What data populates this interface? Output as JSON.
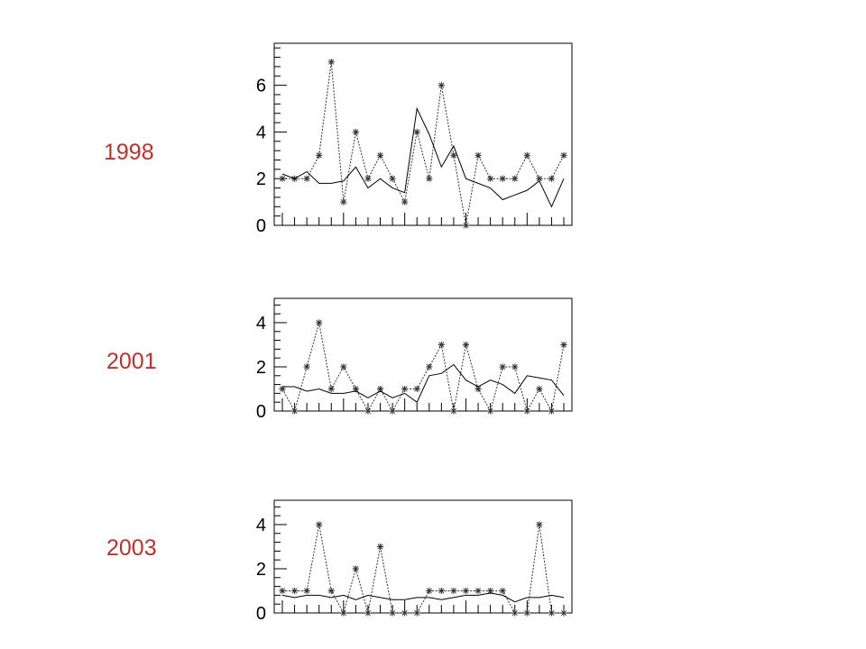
{
  "chart_data": [
    {
      "type": "line",
      "title": "1998",
      "xlabel": "",
      "ylabel": "",
      "ylim": [
        0,
        7.8
      ],
      "yticks": [
        0,
        2,
        4,
        6
      ],
      "x": [
        1,
        2,
        3,
        4,
        5,
        6,
        7,
        8,
        9,
        10,
        11,
        12,
        13,
        14,
        15,
        16,
        17,
        18,
        19,
        20,
        21,
        22,
        23,
        24
      ],
      "series": [
        {
          "values": [
            2,
            2,
            2,
            3,
            7,
            1,
            4,
            2,
            3,
            2,
            1,
            4,
            2,
            6,
            3,
            0,
            3,
            2,
            2,
            2,
            3,
            2,
            2,
            3
          ]
        },
        {
          "values": [
            2.2,
            2.0,
            2.3,
            1.8,
            1.8,
            1.9,
            2.5,
            1.6,
            2.0,
            1.6,
            1.4,
            5.0,
            3.9,
            2.5,
            3.4,
            2.0,
            1.8,
            1.6,
            1.1,
            1.3,
            1.5,
            1.9,
            0.8,
            2.0
          ]
        }
      ]
    },
    {
      "type": "line",
      "title": "2001",
      "xlabel": "",
      "ylabel": "",
      "ylim": [
        0,
        5.1
      ],
      "yticks": [
        0,
        2,
        4
      ],
      "x": [
        1,
        2,
        3,
        4,
        5,
        6,
        7,
        8,
        9,
        10,
        11,
        12,
        13,
        14,
        15,
        16,
        17,
        18,
        19,
        20,
        21,
        22,
        23,
        24
      ],
      "series": [
        {
          "values": [
            1,
            0,
            2,
            4,
            1,
            2,
            1,
            0,
            1,
            0,
            1,
            1,
            2,
            3,
            0,
            3,
            1,
            0,
            2,
            2,
            0,
            1,
            0,
            3
          ]
        },
        {
          "values": [
            1.1,
            1.1,
            0.9,
            1.0,
            0.8,
            0.8,
            0.9,
            0.6,
            0.9,
            0.6,
            0.8,
            0.4,
            1.6,
            1.7,
            2.1,
            1.4,
            1.1,
            1.4,
            1.2,
            0.8,
            1.6,
            1.5,
            1.4,
            0.7
          ]
        }
      ]
    },
    {
      "type": "line",
      "title": "2003",
      "xlabel": "",
      "ylabel": "",
      "ylim": [
        0,
        5.1
      ],
      "yticks": [
        0,
        2,
        4
      ],
      "x": [
        1,
        2,
        3,
        4,
        5,
        6,
        7,
        8,
        9,
        10,
        11,
        12,
        13,
        14,
        15,
        16,
        17,
        18,
        19,
        20,
        21,
        22,
        23,
        24
      ],
      "series": [
        {
          "values": [
            1,
            1,
            1,
            4,
            1,
            0,
            2,
            0,
            3,
            0,
            0,
            0,
            1,
            1,
            1,
            1,
            1,
            1,
            1,
            0,
            0,
            4,
            0,
            0
          ]
        },
        {
          "values": [
            0.8,
            0.7,
            0.8,
            0.8,
            0.7,
            0.8,
            0.6,
            0.8,
            0.7,
            0.6,
            0.6,
            0.7,
            0.7,
            0.6,
            0.7,
            0.8,
            0.8,
            0.9,
            0.8,
            0.5,
            0.7,
            0.7,
            0.8,
            0.7
          ]
        }
      ]
    }
  ],
  "colors": {
    "year_label": "#c0302a",
    "frame": "#000000",
    "series_marked": "#333333",
    "series_smooth": "#000000"
  }
}
